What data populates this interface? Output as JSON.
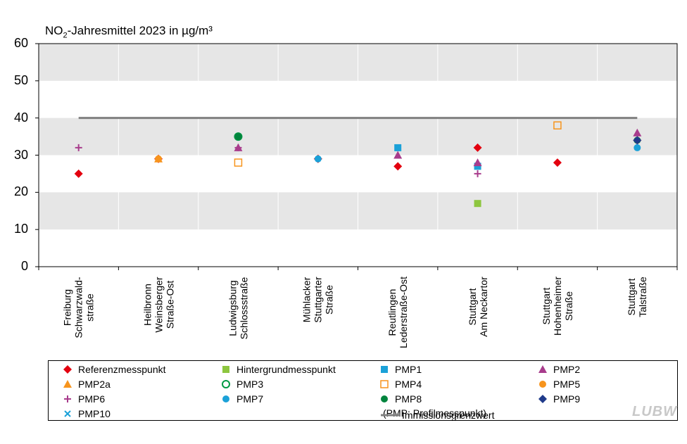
{
  "chart_data": {
    "type": "scatter",
    "title_prefix": "NO",
    "title_sub": "2",
    "title_suffix": "-Jahresmittel  2023 in µg/m³",
    "ylim": [
      0,
      60
    ],
    "yticks": [
      "0",
      "10",
      "20",
      "30",
      "40",
      "50",
      "60"
    ],
    "limit_value": 40,
    "categories": [
      [
        "Freiburg",
        "Schwarzwald-",
        "straße"
      ],
      [
        "Heilbronn",
        "Weinsberger",
        "Straße-Ost"
      ],
      [
        "Ludwigsburg",
        "Schlossstraße"
      ],
      [
        "Mühlacker",
        "Stuttgarter",
        "Straße"
      ],
      [
        "Reutlingen",
        "Lederstraße-Ost"
      ],
      [
        "Stuttgart",
        "Am Neckartor"
      ],
      [
        "Stuttgart",
        "Hohenheimer",
        "Straße"
      ],
      [
        "Stuttgart",
        "Talstraße"
      ]
    ],
    "series": [
      {
        "key": "ref",
        "name": "Referenzmesspunkt",
        "marker": "diamond",
        "color": "#e3000f",
        "values": [
          25,
          29,
          35,
          29,
          27,
          32,
          28,
          34
        ]
      },
      {
        "key": "bg",
        "name": "Hintergrundmesspunkt",
        "marker": "square",
        "color": "#8dc63f",
        "values": [
          null,
          null,
          null,
          null,
          null,
          17,
          null,
          null
        ]
      },
      {
        "key": "pmp1",
        "name": "PMP1",
        "marker": "square",
        "color": "#1ba1d8",
        "values": [
          null,
          null,
          null,
          null,
          32,
          27,
          null,
          null
        ]
      },
      {
        "key": "pmp2",
        "name": "PMP2",
        "marker": "triangle",
        "color": "#a83c8c",
        "values": [
          null,
          null,
          32,
          null,
          30,
          28,
          null,
          36
        ]
      },
      {
        "key": "pmp2a",
        "name": "PMP2a",
        "marker": "triangle",
        "color": "#f7941d",
        "values": [
          null,
          29,
          null,
          null,
          null,
          null,
          null,
          null
        ]
      },
      {
        "key": "pmp3",
        "name": "PMP3",
        "marker": "circle-open",
        "color": "#009a44",
        "values": [
          null,
          null,
          35,
          null,
          null,
          null,
          null,
          null
        ]
      },
      {
        "key": "pmp4",
        "name": "PMP4",
        "marker": "square-open",
        "color": "#f7941d",
        "values": [
          null,
          null,
          28,
          null,
          null,
          null,
          38,
          null
        ]
      },
      {
        "key": "pmp5",
        "name": "PMP5",
        "marker": "circle",
        "color": "#f7941d",
        "values": [
          null,
          29,
          null,
          null,
          null,
          null,
          null,
          null
        ]
      },
      {
        "key": "pmp6",
        "name": "PMP6",
        "marker": "plus",
        "color": "#a83c8c",
        "values": [
          32,
          null,
          32,
          null,
          null,
          25,
          null,
          null
        ]
      },
      {
        "key": "pmp7",
        "name": "PMP7",
        "marker": "circle",
        "color": "#1ba1d8",
        "values": [
          null,
          null,
          null,
          29,
          null,
          null,
          null,
          32
        ]
      },
      {
        "key": "pmp8",
        "name": "PMP8",
        "marker": "circle",
        "color": "#00843d",
        "values": [
          null,
          null,
          35,
          null,
          null,
          null,
          null,
          34
        ]
      },
      {
        "key": "pmp9",
        "name": "PMP9",
        "marker": "diamond",
        "color": "#1f3a8a",
        "values": [
          null,
          null,
          null,
          null,
          null,
          null,
          null,
          34
        ]
      },
      {
        "key": "pmp10",
        "name": "PMP10",
        "marker": "x",
        "color": "#1ba1d8",
        "values": [
          null,
          null,
          null,
          null,
          null,
          null,
          null,
          null
        ]
      }
    ],
    "limit_series": {
      "name": "Immissionsgrenzwert",
      "color": "#808080"
    },
    "note": "(PMP: Profilmesspunkt)",
    "watermark": "LUBW"
  }
}
